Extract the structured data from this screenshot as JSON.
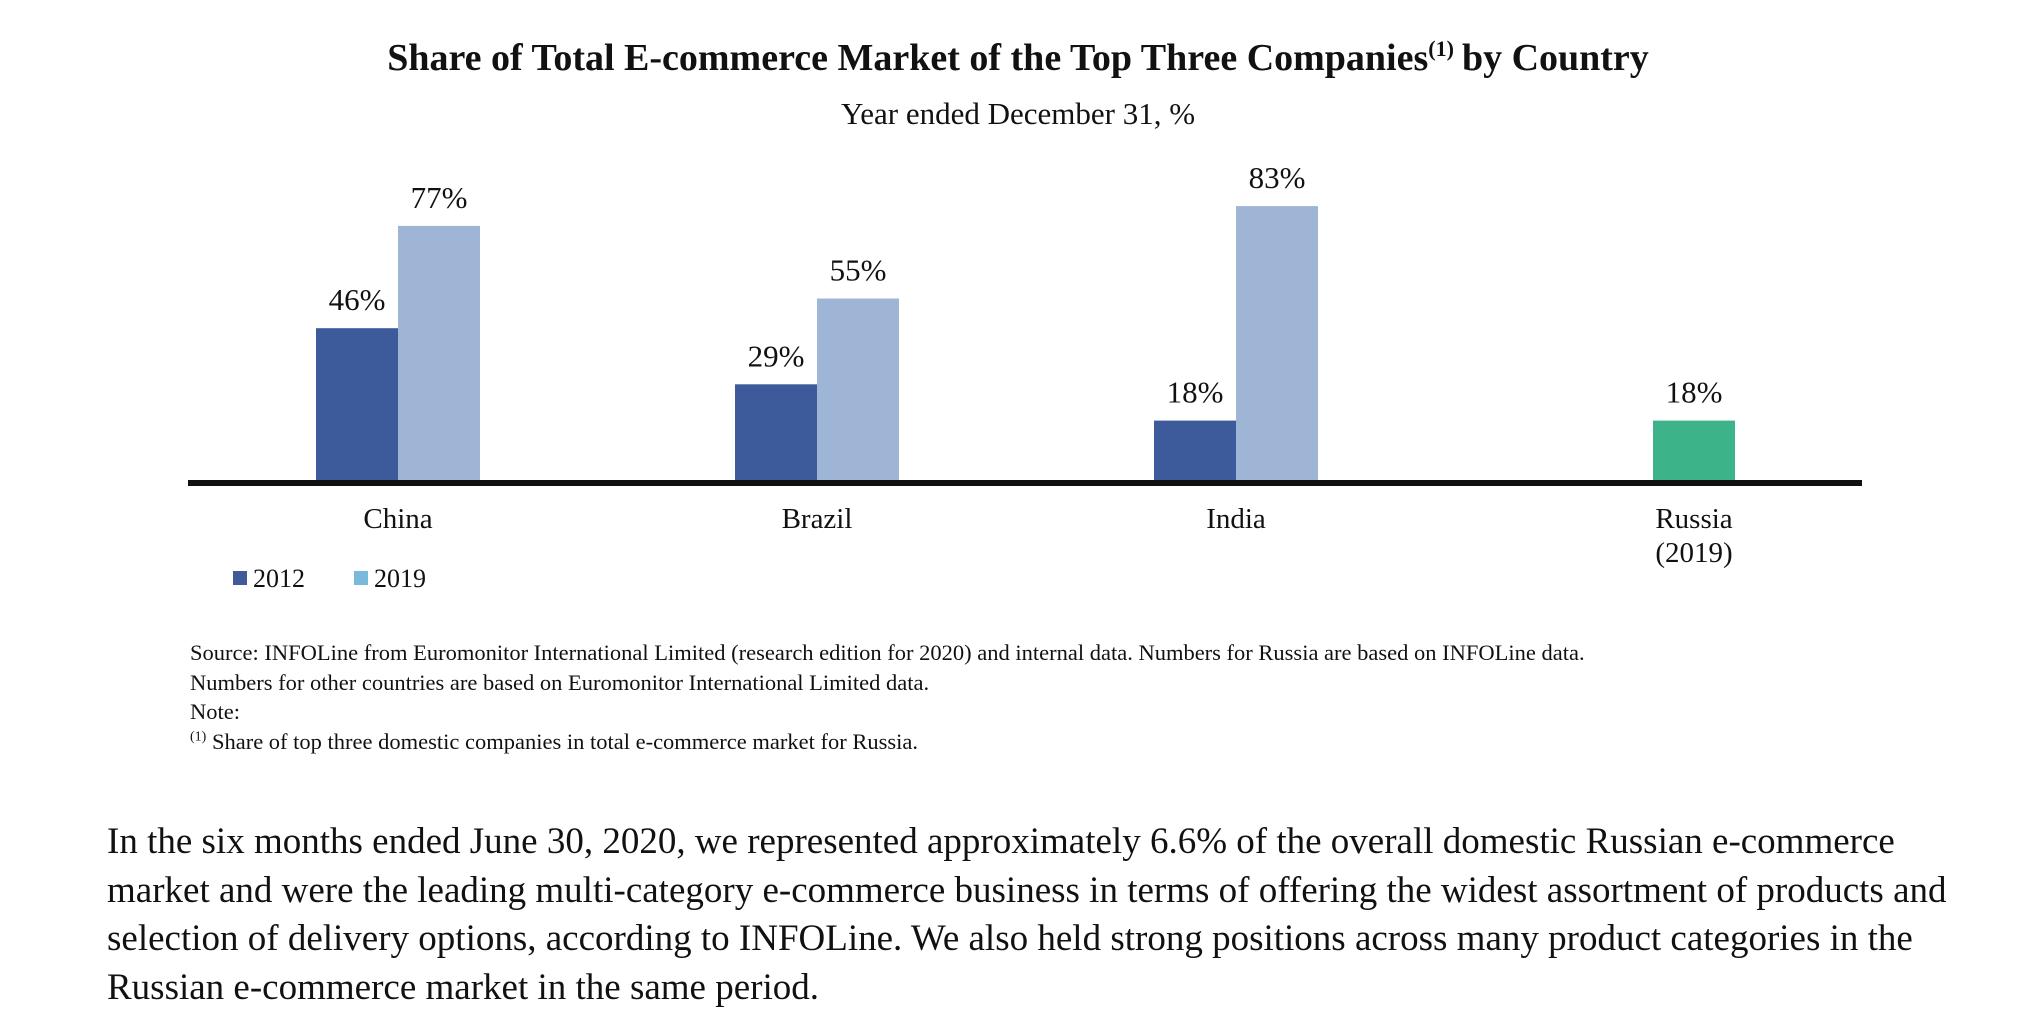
{
  "chart_data": {
    "type": "bar",
    "title": "Share of Total E-commerce Market of the Top Three Companies",
    "title_footnote_mark": "(1)",
    "title_suffix": "by Country",
    "subtitle": "Year ended December 31, %",
    "categories": [
      "China",
      "Brazil",
      "India",
      "Russia"
    ],
    "category_sublabels": [
      "",
      "",
      "",
      "(2019)"
    ],
    "series": [
      {
        "name": "2012",
        "values": [
          46,
          29,
          18,
          null
        ],
        "labels": [
          "46%",
          "29%",
          "18%",
          ""
        ],
        "color": "#3d5a9a"
      },
      {
        "name": "2019",
        "values": [
          77,
          55,
          83,
          18
        ],
        "labels": [
          "77%",
          "55%",
          "83%",
          "18%"
        ],
        "color": "#9fb5d6"
      }
    ],
    "highlight_color": "#3db38a",
    "legend_colors": [
      "#3d5a9a",
      "#7ab8dc"
    ],
    "ylim": [
      0,
      100
    ],
    "grid": false,
    "legend_position": "bottom-left"
  },
  "notes": {
    "source_line1": "Source: INFOLine from Euromonitor International Limited (research edition for 2020) and internal data. Numbers for Russia are based on INFOLine data.",
    "source_line2": "Numbers for other countries are based on Euromonitor International Limited data.",
    "note_label": "Note:",
    "footnote_mark": "(1)",
    "footnote_text": "Share of top three domestic companies in total e-commerce market for Russia."
  },
  "paragraph": "In the six months ended June 30, 2020, we represented approximately 6.6% of the overall domestic Russian e-commerce market and were the leading multi-category e-commerce business in terms of offering the widest assortment of products and selection of delivery options, according to INFOLine. We also held strong positions across many product categories in the Russian e-commerce market in the same period."
}
